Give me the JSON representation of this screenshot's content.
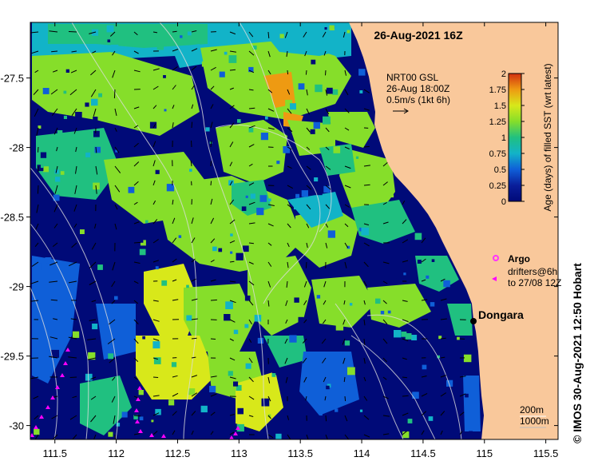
{
  "map": {
    "title": "26-Aug-2021 16Z",
    "place_label": "Dongara",
    "velocity_legend": {
      "line1": "NRT00 GSL",
      "line2": "26-Aug 18:00Z",
      "line3": "0.5m/s (1kt 6h)"
    },
    "colorbar": {
      "label": "Age (days) of filled SST (wrt latest)",
      "ticks": [
        "0",
        "0.25",
        "0.5",
        "0.75",
        "1",
        "1.25",
        "1.5",
        "1.75",
        "2"
      ],
      "colors": [
        "#000a78",
        "#0a1e9a",
        "#0f5fd8",
        "#12b3c8",
        "#20c080",
        "#86de2a",
        "#d8e81a",
        "#ee9a12",
        "#d23010"
      ]
    },
    "legend": {
      "argo_label": "Argo",
      "drifter_line1": "drifters@6h",
      "drifter_line2": "to 27/08 12Z"
    },
    "isobaths": {
      "line1": "200m",
      "line2": "1000m"
    },
    "x_ticks": [
      "111.5",
      "112",
      "112.5",
      "113",
      "113.5",
      "114",
      "114.5",
      "115",
      "115.5"
    ],
    "y_ticks": [
      "-27.5",
      "-28",
      "-28.5",
      "-29",
      "-29.5",
      "-30"
    ],
    "x_range": [
      111.3,
      115.6
    ],
    "y_range": [
      -27.1,
      -30.1
    ],
    "copyright": "© IMOS 30-Aug-2021 12:50 Hobart",
    "colors": {
      "land": "#f9c89b",
      "deep": "#000a78",
      "argo": "#ff33ff",
      "drifter": "#ff00ff"
    }
  }
}
